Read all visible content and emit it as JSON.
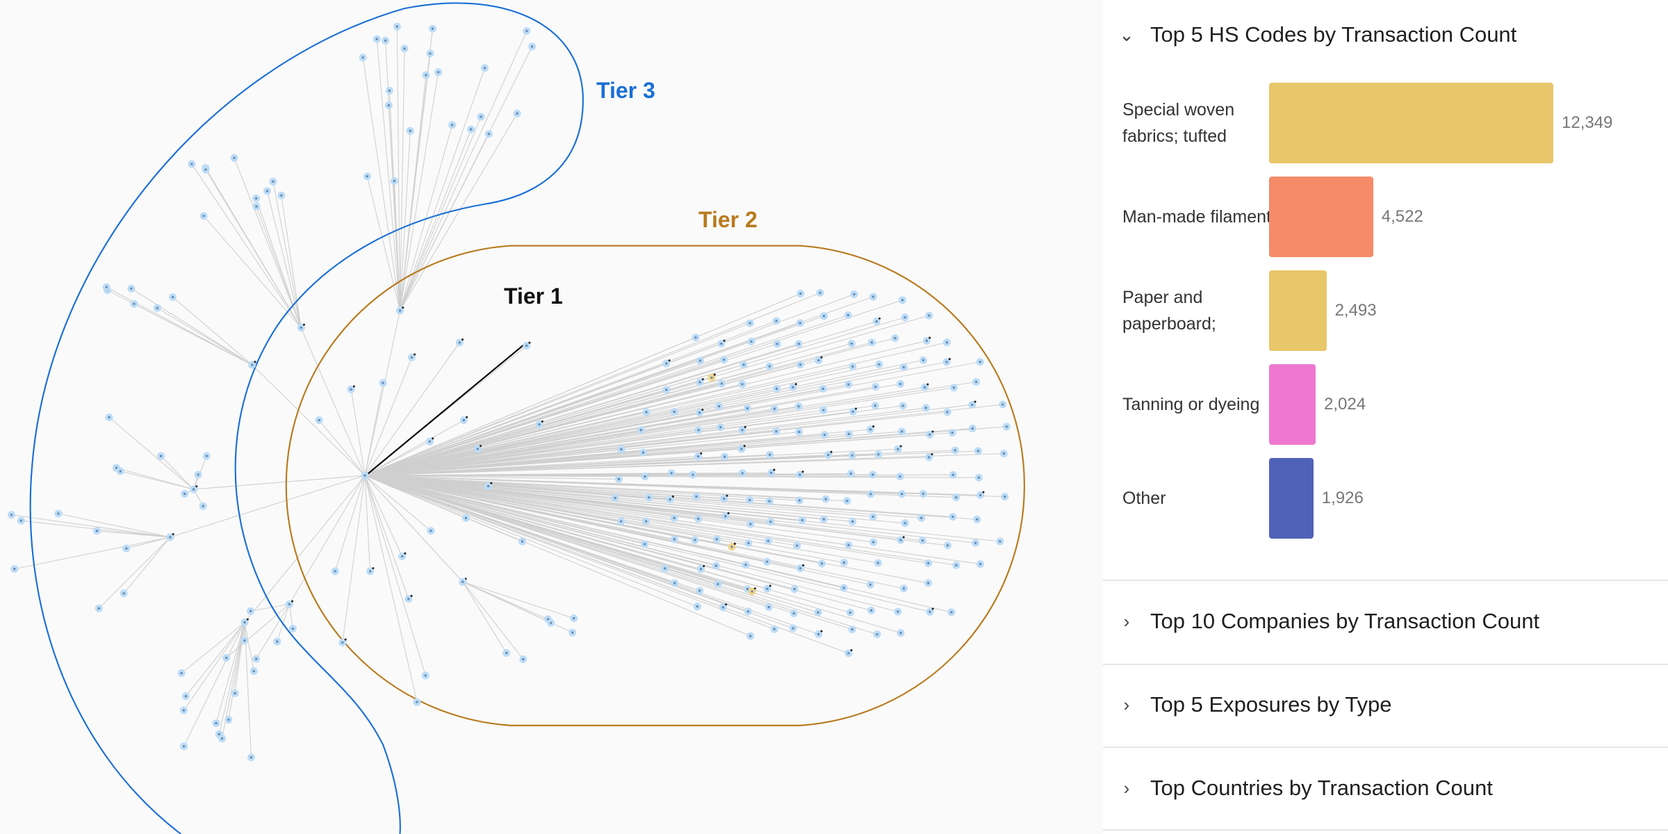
{
  "graph": {
    "tiers": [
      {
        "label": "Tier 1",
        "color": "#111111"
      },
      {
        "label": "Tier 2",
        "color": "#b87a1e"
      },
      {
        "label": "Tier 3",
        "color": "#1a6fd6"
      }
    ],
    "node_color": "#bcdcf7",
    "highlight_node_color": "#f1d48a",
    "edge_color": "#cfcfcf"
  },
  "panel": {
    "sections": [
      {
        "title": "Top 5 HS Codes by Transaction Count",
        "expanded": true,
        "icon": "chevron-down-icon"
      },
      {
        "title": "Top 10 Companies by Transaction Count",
        "expanded": false,
        "icon": "chevron-right-icon"
      },
      {
        "title": "Top 5 Exposures by Type",
        "expanded": false,
        "icon": "chevron-right-icon"
      },
      {
        "title": "Top Countries by Transaction Count",
        "expanded": false,
        "icon": "chevron-right-icon"
      }
    ]
  },
  "chart_data": {
    "type": "bar",
    "orientation": "horizontal",
    "title": "Top 5 HS Codes by Transaction Count",
    "categories": [
      "Special woven fabrics; tufted",
      "Man-made filaments",
      "Paper and paperboard;",
      "Tanning or dyeing",
      "Other"
    ],
    "values": [
      12349,
      4522,
      2493,
      2024,
      1926
    ],
    "value_labels": [
      "12,349",
      "4,522",
      "2,493",
      "2,024",
      "1,926"
    ],
    "colors": [
      "#e8c66a",
      "#f58b69",
      "#e8c66a",
      "#ee78cf",
      "#5062b8"
    ],
    "grid": false
  }
}
